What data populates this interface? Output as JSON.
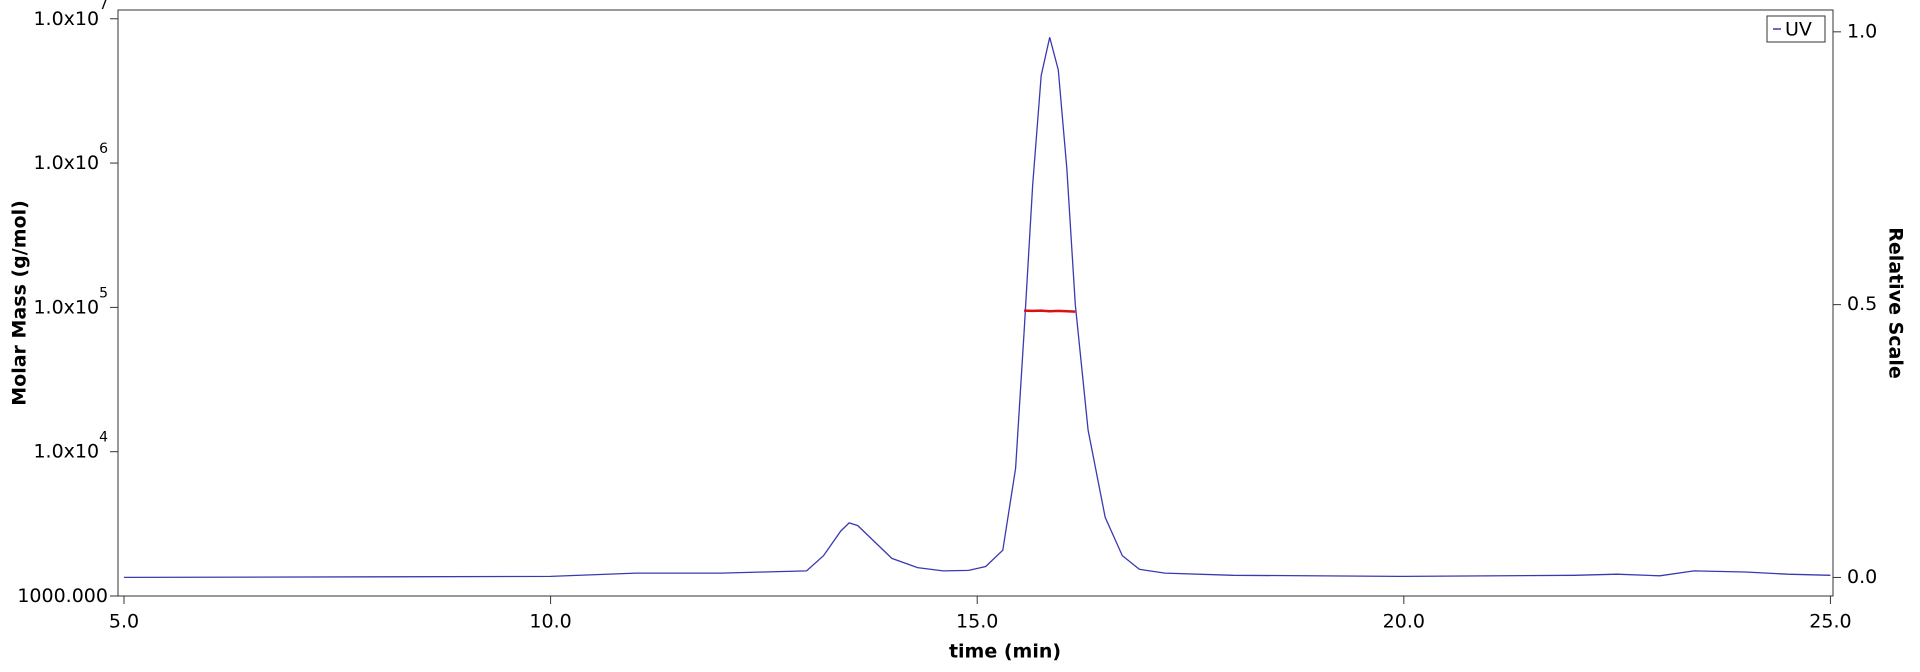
{
  "chart_data": {
    "type": "line",
    "xlabel": "time (min)",
    "ylabel": "Molar Mass (g/mol)",
    "y2label": "Relative Scale",
    "xlim": [
      4.93,
      25.03
    ],
    "xticks": [
      {
        "value": 5,
        "label": "5.0"
      },
      {
        "value": 10,
        "label": "10.0"
      },
      {
        "value": 15,
        "label": "15.0"
      },
      {
        "value": 20,
        "label": "20.0"
      },
      {
        "value": 25,
        "label": "25.0"
      }
    ],
    "ylog": true,
    "ylim": [
      1000,
      11500000
    ],
    "yticks": [
      {
        "value": 1000,
        "label": "1000.000"
      },
      {
        "value": 10000,
        "label": "1.0x10",
        "exponent": "4"
      },
      {
        "value": 100000,
        "label": "1.0x10",
        "exponent": "5"
      },
      {
        "value": 1000000,
        "label": "1.0x10",
        "exponent": "6"
      },
      {
        "value": 10000000,
        "label": "1.0x10",
        "exponent": "7"
      }
    ],
    "y2lim": [
      -0.034,
      1.04
    ],
    "y2ticks": [
      {
        "value": 0,
        "label": "0.0"
      },
      {
        "value": 0.5,
        "label": "0.5"
      },
      {
        "value": 1,
        "label": "1.0"
      }
    ],
    "legend": "upper right",
    "series": [
      {
        "name": "UV",
        "color": "#3a3ab0",
        "axis": "y2",
        "x": [
          5.0,
          10.0,
          11.0,
          12.0,
          12.5,
          13.0,
          13.2,
          13.4,
          13.5,
          13.6,
          13.8,
          14.0,
          14.3,
          14.6,
          14.9,
          15.1,
          15.3,
          15.45,
          15.55,
          15.65,
          15.75,
          15.85,
          15.95,
          16.05,
          16.15,
          16.3,
          16.5,
          16.7,
          16.9,
          17.2,
          18.0,
          20.0,
          22.0,
          22.5,
          23.0,
          23.4,
          24.0,
          24.5,
          25.0
        ],
        "values": [
          0.0,
          0.002,
          0.008,
          0.008,
          0.01,
          0.012,
          0.04,
          0.085,
          0.1,
          0.095,
          0.065,
          0.035,
          0.018,
          0.012,
          0.013,
          0.02,
          0.05,
          0.2,
          0.45,
          0.72,
          0.92,
          0.99,
          0.93,
          0.75,
          0.5,
          0.27,
          0.11,
          0.04,
          0.015,
          0.008,
          0.004,
          0.002,
          0.004,
          0.006,
          0.003,
          0.012,
          0.01,
          0.006,
          0.004
        ]
      },
      {
        "color": "#dd1111",
        "axis": "y",
        "x": [
          15.55,
          15.65,
          15.75,
          15.85,
          15.95,
          16.05,
          16.15
        ],
        "values": [
          95000,
          94500,
          95000,
          94000,
          94500,
          94000,
          93500
        ]
      }
    ]
  }
}
